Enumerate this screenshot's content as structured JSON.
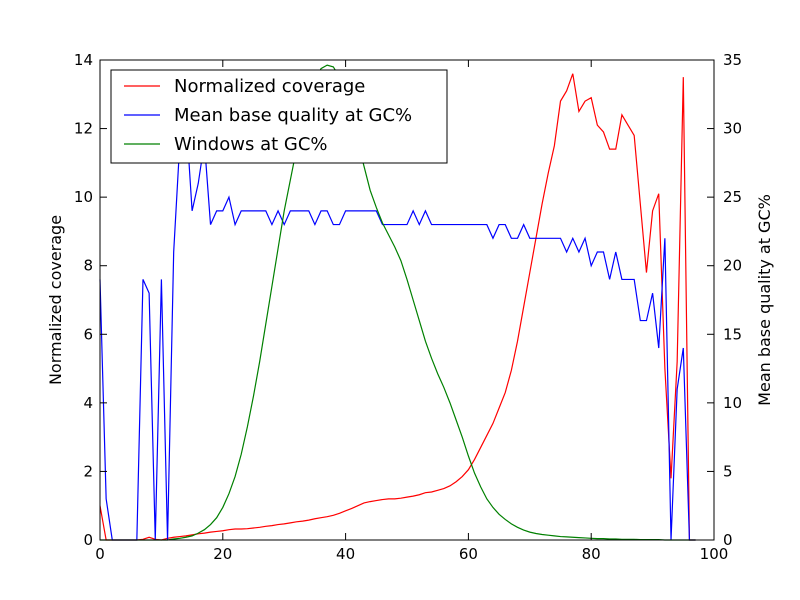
{
  "chart_data": {
    "type": "line",
    "title": "",
    "xlabel": "",
    "ylabel_left": "Normalized coverage",
    "ylabel_right": "Mean base quality at GC%",
    "xlim": [
      0,
      100
    ],
    "ylim_left": [
      0,
      14
    ],
    "ylim_right": [
      0,
      35
    ],
    "x_ticks": [
      "0",
      "20",
      "40",
      "60",
      "80",
      "100"
    ],
    "y_left_ticks": [
      "0",
      "2",
      "4",
      "6",
      "8",
      "10",
      "12",
      "14"
    ],
    "y_right_ticks": [
      "0",
      "5",
      "10",
      "15",
      "20",
      "25",
      "30",
      "35"
    ],
    "legend_position": "top-left",
    "grid": false,
    "series": [
      {
        "name": "Normalized coverage",
        "axis": "left",
        "color": "#ff0000",
        "x": [
          0,
          1,
          2,
          3,
          4,
          5,
          6,
          7,
          8,
          9,
          10,
          11,
          12,
          13,
          14,
          15,
          16,
          17,
          18,
          19,
          20,
          21,
          22,
          23,
          24,
          25,
          26,
          27,
          28,
          29,
          30,
          31,
          32,
          33,
          34,
          35,
          36,
          37,
          38,
          39,
          40,
          41,
          42,
          43,
          44,
          45,
          46,
          47,
          48,
          49,
          50,
          51,
          52,
          53,
          54,
          55,
          56,
          57,
          58,
          59,
          60,
          61,
          62,
          63,
          64,
          65,
          66,
          67,
          68,
          69,
          70,
          71,
          72,
          73,
          74,
          75,
          76,
          77,
          78,
          79,
          80,
          81,
          82,
          83,
          84,
          85,
          86,
          87,
          88,
          89,
          90,
          91,
          92,
          93,
          94,
          95,
          96,
          97
        ],
        "values": [
          1.0,
          0,
          0,
          0,
          0,
          0,
          0,
          0.02,
          0.08,
          0.02,
          0,
          0.05,
          0.08,
          0.1,
          0.12,
          0.15,
          0.18,
          0.2,
          0.23,
          0.25,
          0.27,
          0.3,
          0.32,
          0.32,
          0.33,
          0.35,
          0.37,
          0.4,
          0.42,
          0.45,
          0.47,
          0.5,
          0.53,
          0.55,
          0.58,
          0.62,
          0.65,
          0.68,
          0.72,
          0.78,
          0.85,
          0.92,
          1.0,
          1.08,
          1.12,
          1.15,
          1.18,
          1.2,
          1.2,
          1.22,
          1.25,
          1.28,
          1.32,
          1.38,
          1.4,
          1.45,
          1.5,
          1.58,
          1.7,
          1.85,
          2.05,
          2.35,
          2.7,
          3.05,
          3.4,
          3.85,
          4.3,
          4.95,
          5.8,
          6.8,
          7.8,
          8.8,
          9.8,
          10.7,
          11.5,
          12.8,
          13.1,
          13.6,
          12.5,
          12.8,
          12.9,
          12.1,
          11.9,
          11.4,
          11.4,
          12.4,
          12.1,
          11.8,
          9.8,
          7.8,
          9.6,
          10.1,
          5.0,
          1.8,
          5.2,
          13.5,
          0,
          0
        ]
      },
      {
        "name": "Mean base quality at GC%",
        "axis": "right",
        "color": "#0000ff",
        "x": [
          0,
          1,
          2,
          3,
          4,
          5,
          6,
          7,
          8,
          9,
          10,
          11,
          12,
          13,
          14,
          15,
          16,
          17,
          18,
          19,
          20,
          21,
          22,
          23,
          24,
          25,
          26,
          27,
          28,
          29,
          30,
          31,
          32,
          33,
          34,
          35,
          36,
          37,
          38,
          39,
          40,
          41,
          42,
          43,
          44,
          45,
          46,
          47,
          48,
          49,
          50,
          51,
          52,
          53,
          54,
          55,
          56,
          57,
          58,
          59,
          60,
          61,
          62,
          63,
          64,
          65,
          66,
          67,
          68,
          69,
          70,
          71,
          72,
          73,
          74,
          75,
          76,
          77,
          78,
          79,
          80,
          81,
          82,
          83,
          84,
          85,
          86,
          87,
          88,
          89,
          90,
          91,
          92,
          93,
          94,
          95,
          96,
          97
        ],
        "values": [
          19,
          3,
          0,
          0,
          0,
          0,
          0,
          19,
          18,
          0,
          19,
          0,
          21,
          29,
          31,
          24,
          26,
          29,
          23,
          24,
          24,
          25,
          23,
          24,
          24,
          24,
          24,
          24,
          23,
          24,
          23,
          24,
          24,
          24,
          24,
          23,
          24,
          24,
          23,
          23,
          24,
          24,
          24,
          24,
          24,
          24,
          23,
          23,
          23,
          23,
          23,
          24,
          23,
          24,
          23,
          23,
          23,
          23,
          23,
          23,
          23,
          23,
          23,
          23,
          22,
          23,
          23,
          22,
          22,
          23,
          22,
          22,
          22,
          22,
          22,
          22,
          21,
          22,
          21,
          22,
          20,
          21,
          21,
          19,
          21,
          19,
          19,
          19,
          16,
          16,
          18,
          14,
          22,
          0,
          11,
          14,
          0,
          0
        ]
      },
      {
        "name": "Windows at GC%",
        "axis": "left",
        "color": "#008000",
        "x": [
          0,
          1,
          2,
          3,
          4,
          5,
          6,
          7,
          8,
          9,
          10,
          11,
          12,
          13,
          14,
          15,
          16,
          17,
          18,
          19,
          20,
          21,
          22,
          23,
          24,
          25,
          26,
          27,
          28,
          29,
          30,
          31,
          32,
          33,
          34,
          35,
          36,
          37,
          38,
          39,
          40,
          41,
          42,
          43,
          44,
          45,
          46,
          47,
          48,
          49,
          50,
          51,
          52,
          53,
          54,
          55,
          56,
          57,
          58,
          59,
          60,
          61,
          62,
          63,
          64,
          65,
          66,
          67,
          68,
          69,
          70,
          71,
          72,
          73,
          74,
          75,
          76,
          77,
          78,
          79,
          80,
          81,
          82,
          83,
          84,
          85,
          86,
          87,
          88,
          89,
          90,
          91,
          92,
          93,
          94,
          95,
          96,
          97
        ],
        "values": [
          0,
          0,
          0,
          0,
          0,
          0,
          0,
          0,
          0,
          0,
          0,
          0,
          0.03,
          0.05,
          0.08,
          0.12,
          0.2,
          0.3,
          0.45,
          0.65,
          0.95,
          1.35,
          1.85,
          2.5,
          3.3,
          4.2,
          5.2,
          6.3,
          7.4,
          8.5,
          9.6,
          10.5,
          11.4,
          12.2,
          12.9,
          13.4,
          13.75,
          13.85,
          13.8,
          13.5,
          13.0,
          12.3,
          11.6,
          10.9,
          10.2,
          9.7,
          9.25,
          8.9,
          8.55,
          8.15,
          7.6,
          7.0,
          6.4,
          5.8,
          5.3,
          4.85,
          4.45,
          4.0,
          3.5,
          3.0,
          2.45,
          1.95,
          1.55,
          1.2,
          0.95,
          0.75,
          0.6,
          0.47,
          0.37,
          0.29,
          0.23,
          0.19,
          0.16,
          0.14,
          0.12,
          0.1,
          0.09,
          0.08,
          0.07,
          0.06,
          0.05,
          0.04,
          0.04,
          0.03,
          0.03,
          0.02,
          0.02,
          0.02,
          0.01,
          0.01,
          0.01,
          0.01,
          0,
          0,
          0,
          0,
          0,
          0
        ]
      }
    ]
  }
}
